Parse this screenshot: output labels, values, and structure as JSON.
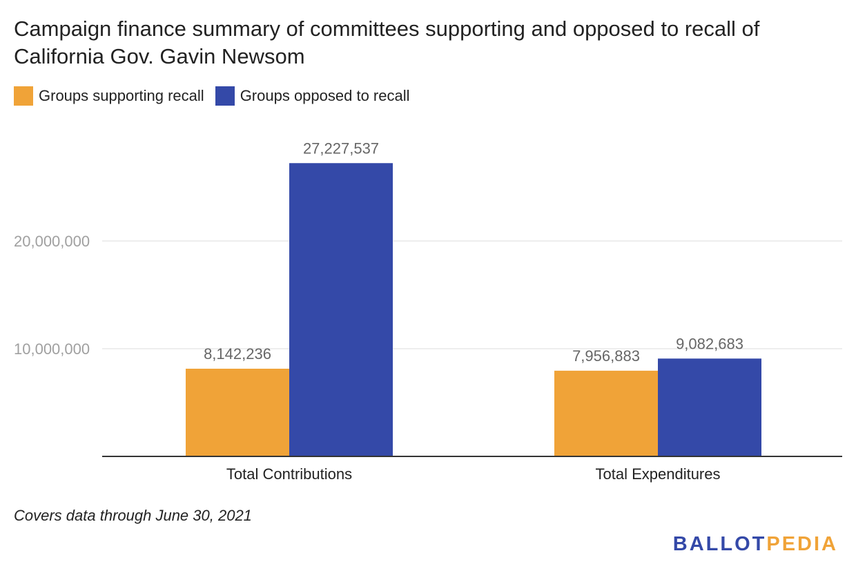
{
  "chart_data": {
    "type": "bar",
    "title": "Campaign finance summary of committees supporting and opposed to recall of California Gov. Gavin Newsom",
    "categories": [
      "Total Contributions",
      "Total Expenditures"
    ],
    "series": [
      {
        "name": "Groups supporting recall",
        "color": "#f0a338",
        "values": [
          8142236,
          7956883
        ],
        "labels": [
          "8,142,236",
          "7,956,883"
        ]
      },
      {
        "name": "Groups opposed to recall",
        "color": "#3449a8",
        "values": [
          27227537,
          9082683
        ],
        "labels": [
          "27,227,537",
          "9,082,683"
        ]
      }
    ],
    "yticks": [
      10000000,
      20000000
    ],
    "ytick_labels": [
      "10,000,000",
      "20,000,000"
    ],
    "ylim": [
      0,
      30000000
    ],
    "grid": true,
    "legend_position": "top-left",
    "xlabel": "",
    "ylabel": ""
  },
  "footnote": "Covers data through June 30, 2021",
  "brand": {
    "part1": "BALLOT",
    "part2": "PEDIA"
  }
}
